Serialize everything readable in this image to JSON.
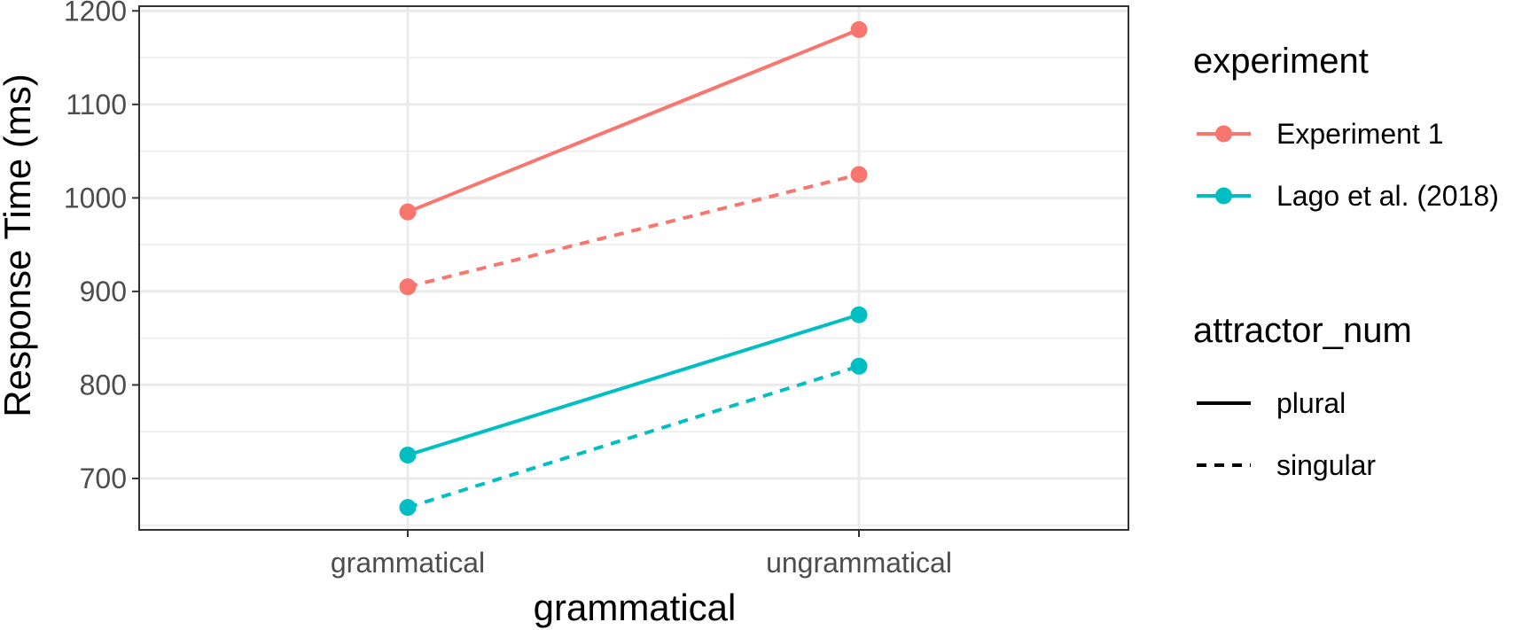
{
  "chart_data": {
    "type": "line",
    "xlabel": "grammatical",
    "ylabel": "Response Time (ms)",
    "categories": [
      "grammatical",
      "ungrammatical"
    ],
    "ylim": [
      645,
      1205
    ],
    "yticks": [
      700,
      800,
      900,
      1000,
      1100,
      1200
    ],
    "grid": true,
    "legend_placement": "right",
    "series": [
      {
        "experiment": "Experiment 1",
        "attractor_num": "plural",
        "values": [
          985,
          1180
        ]
      },
      {
        "experiment": "Experiment 1",
        "attractor_num": "singular",
        "values": [
          905,
          1025
        ]
      },
      {
        "experiment": "Lago et al. (2018)",
        "attractor_num": "plural",
        "values": [
          725,
          875
        ]
      },
      {
        "experiment": "Lago et al. (2018)",
        "attractor_num": "singular",
        "values": [
          669,
          820
        ]
      }
    ],
    "legends": [
      {
        "title": "experiment",
        "kind": "color",
        "items": [
          {
            "label": "Experiment 1",
            "color": "#F8766D"
          },
          {
            "label": "Lago et al. (2018)",
            "color": "#00BFC4"
          }
        ]
      },
      {
        "title": "attractor_num",
        "kind": "linetype",
        "items": [
          {
            "label": "plural",
            "linetype": "solid"
          },
          {
            "label": "singular",
            "linetype": "dashed"
          }
        ]
      }
    ]
  }
}
